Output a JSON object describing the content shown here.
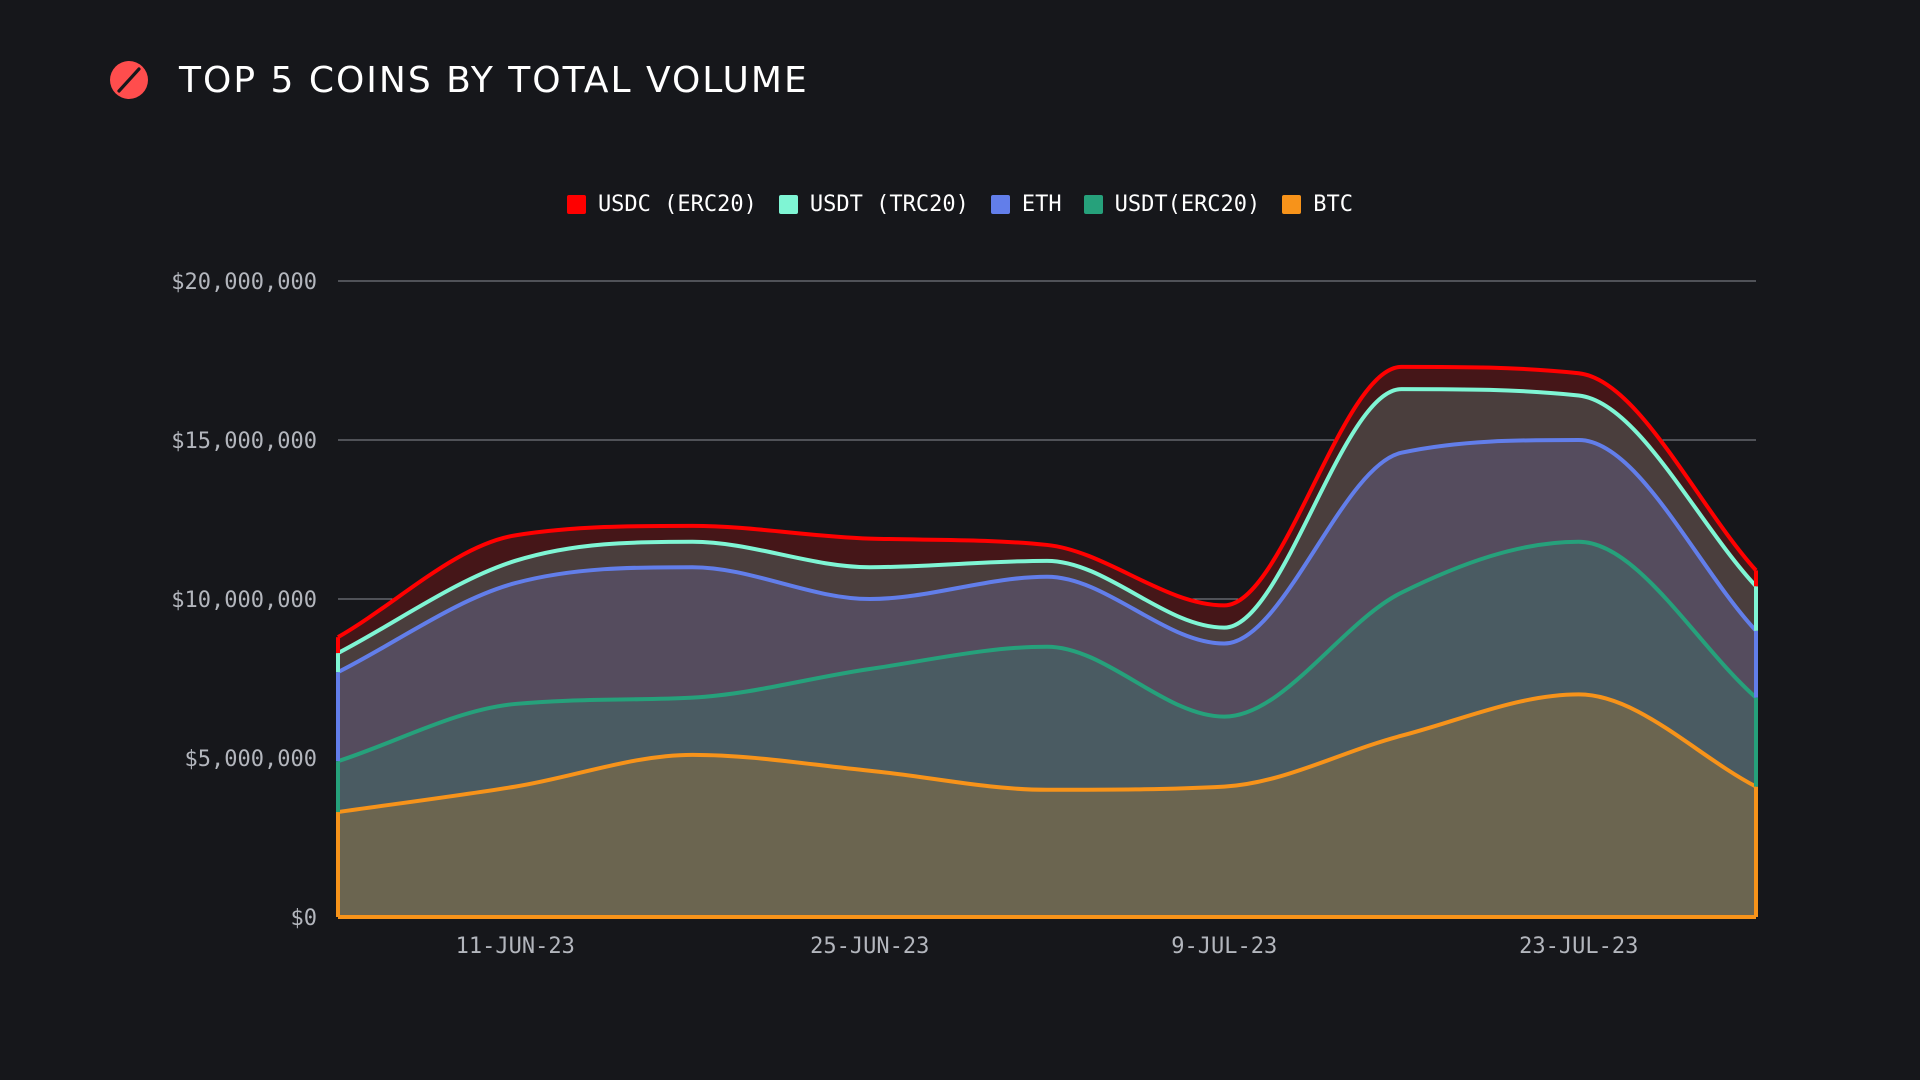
{
  "header": {
    "title": "TOP 5 COINS BY TOTAL VOLUME",
    "logo_icon": "slashed-circle-logo-icon",
    "logo_color": "#ff4d4d"
  },
  "chart_data": {
    "type": "area",
    "title": "TOP 5 COINS BY TOTAL VOLUME",
    "stacked": true,
    "smooth": true,
    "x": [
      "4-JUN-23",
      "11-JUN-23",
      "18-JUN-23",
      "25-JUN-23",
      "2-JUL-23",
      "9-JUL-23",
      "16-JUL-23",
      "23-JUL-23",
      "30-JUL-23"
    ],
    "x_tick_labels": [
      "11-JUN-23",
      "25-JUN-23",
      "9-JUL-23",
      "23-JUL-23"
    ],
    "y_tick_labels": [
      "$0",
      "$5,000,000",
      "$10,000,000",
      "$15,000,000",
      "$20,000,000"
    ],
    "y_ticks": [
      0,
      5000000,
      10000000,
      15000000,
      20000000
    ],
    "ylim": [
      0,
      20000000
    ],
    "grid": true,
    "legend_position": "top",
    "xlabel": "",
    "ylabel": "",
    "series": [
      {
        "name": "BTC",
        "color": "#f7931a",
        "values": [
          3300000,
          4100000,
          5100000,
          4600000,
          4000000,
          4100000,
          5700000,
          7000000,
          4100000
        ]
      },
      {
        "name": "USDT(ERC20)",
        "color": "#26a17b",
        "values": [
          1600000,
          2600000,
          1800000,
          3200000,
          4500000,
          2200000,
          4500000,
          4800000,
          2800000
        ]
      },
      {
        "name": "ETH",
        "color": "#627eea",
        "values": [
          2800000,
          3800000,
          4100000,
          2200000,
          2200000,
          2300000,
          4400000,
          3200000,
          2100000
        ]
      },
      {
        "name": "USDT (TRC20)",
        "color": "#7ff5d4",
        "values": [
          600000,
          700000,
          800000,
          1000000,
          500000,
          500000,
          2000000,
          1400000,
          1400000
        ]
      },
      {
        "name": "USDC (ERC20)",
        "color": "#ff0000",
        "values": [
          500000,
          800000,
          500000,
          900000,
          500000,
          700000,
          700000,
          700000,
          500000
        ]
      }
    ],
    "legend_order": [
      "USDC (ERC20)",
      "USDT (TRC20)",
      "ETH",
      "USDT(ERC20)",
      "BTC"
    ]
  }
}
